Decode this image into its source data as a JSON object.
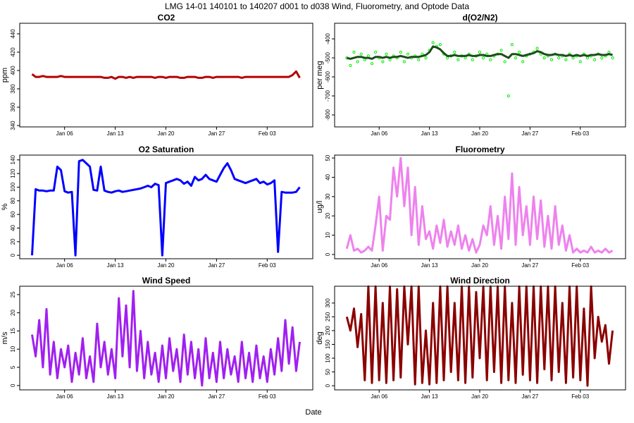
{
  "title": "LMG   14-01    140101 to 140207    d001 to d038   Wind, Fluorometry, and Optode Data",
  "xlabel": "Date",
  "chart_data": [
    {
      "type": "line",
      "title": "CO2",
      "ylabel": "ppm",
      "x": [
        1.5,
        2,
        2.5,
        3,
        3.5,
        4,
        4.5,
        5,
        5.5,
        6,
        6.5,
        7,
        7.5,
        8,
        8.5,
        9,
        9.5,
        10,
        10.5,
        11,
        11.5,
        12,
        12.5,
        13,
        13.5,
        14,
        14.5,
        15,
        15.5,
        16,
        16.5,
        17,
        17.5,
        18,
        18.5,
        19,
        19.5,
        20,
        20.5,
        21,
        21.5,
        22,
        22.5,
        23,
        23.5,
        24,
        24.5,
        25,
        25.5,
        26,
        26.5,
        27,
        27.5,
        28,
        28.5,
        29,
        29.5,
        30,
        30.5,
        31,
        31.5,
        32,
        32.5,
        33,
        33.5,
        34,
        34.5,
        35,
        35.5,
        36,
        36.5,
        37,
        37.5,
        38,
        38.5
      ],
      "series": [
        {
          "type": "line",
          "color": "#b30000",
          "values": [
            396,
            393,
            393,
            394,
            393,
            393,
            393,
            393,
            394,
            393,
            393,
            393,
            393,
            393,
            393,
            393,
            393,
            393,
            393,
            393,
            392,
            392,
            393,
            391,
            393,
            393,
            392,
            393,
            392,
            393,
            393,
            393,
            393,
            393,
            392,
            393,
            393,
            392,
            393,
            393,
            393,
            392,
            392,
            393,
            393,
            393,
            392,
            392,
            393,
            393,
            392,
            393,
            393,
            393,
            393,
            393,
            393,
            393,
            392,
            393,
            393,
            393,
            393,
            393,
            393,
            393,
            393,
            393,
            393,
            393,
            393,
            393,
            395,
            399,
            392
          ]
        }
      ],
      "xlim": [
        -0.2,
        40.3
      ],
      "xticks": [
        {
          "value": 6,
          "label": "Jan 06"
        },
        {
          "value": 13,
          "label": "Jan 13"
        },
        {
          "value": 20,
          "label": "Jan 20"
        },
        {
          "value": 27,
          "label": "Jan 27"
        },
        {
          "value": 34,
          "label": "Feb 03"
        }
      ],
      "ylim": [
        338.5,
        451.5
      ],
      "yticks": [
        340,
        360,
        380,
        400,
        420,
        440
      ]
    },
    {
      "type": "line",
      "title": "d(O2/N2)",
      "ylabel": "per meg",
      "x": [
        1.5,
        2,
        2.5,
        3,
        3.5,
        4,
        4.5,
        5,
        5.5,
        6,
        6.5,
        7,
        7.5,
        8,
        8.5,
        9,
        9.5,
        10,
        10.5,
        11,
        11.5,
        12,
        12.5,
        13,
        13.5,
        14,
        14.5,
        15,
        15.5,
        16,
        16.5,
        17,
        17.5,
        18,
        18.5,
        19,
        19.5,
        20,
        20.5,
        21,
        21.5,
        22,
        22.5,
        23,
        23.5,
        24,
        24.5,
        25,
        25.5,
        26,
        26.5,
        27,
        27.5,
        28,
        28.5,
        29,
        29.5,
        30,
        30.5,
        31,
        31.5,
        32,
        32.5,
        33,
        33.5,
        34,
        34.5,
        35,
        35.5,
        36,
        36.5,
        37,
        37.5,
        38,
        38.5
      ],
      "series": [
        {
          "type": "scatter",
          "color": "#00ee00",
          "values": [
            -500,
            -540,
            -470,
            -520,
            -480,
            -510,
            -490,
            -530,
            -470,
            -500,
            -520,
            -480,
            -510,
            -490,
            -500,
            -470,
            -520,
            -480,
            -500,
            -490,
            -510,
            -480,
            -500,
            -460,
            -420,
            -440,
            -430,
            -480,
            -500,
            -490,
            -470,
            -510,
            -490,
            -500,
            -480,
            -510,
            -490,
            -470,
            -500,
            -480,
            -510,
            -490,
            -480,
            -460,
            -520,
            -700,
            -430,
            -500,
            -470,
            -520,
            -490,
            -480,
            -470,
            -450,
            -480,
            -500,
            -490,
            -510,
            -480,
            -500,
            -490,
            -510,
            -480,
            -500,
            -490,
            -520,
            -480,
            -500,
            -490,
            -510,
            -480,
            -500,
            -490,
            -470,
            -500
          ]
        },
        {
          "type": "line",
          "color": "#1a4d1a",
          "values": [
            -500,
            -505,
            -500,
            -495,
            -495,
            -500,
            -500,
            -505,
            -495,
            -495,
            -500,
            -495,
            -500,
            -495,
            -495,
            -490,
            -495,
            -500,
            -495,
            -495,
            -495,
            -490,
            -485,
            -470,
            -440,
            -445,
            -455,
            -475,
            -490,
            -490,
            -485,
            -490,
            -490,
            -490,
            -485,
            -490,
            -490,
            -485,
            -485,
            -490,
            -490,
            -485,
            -480,
            -480,
            -490,
            -500,
            -480,
            -480,
            -485,
            -490,
            -485,
            -480,
            -475,
            -465,
            -470,
            -480,
            -485,
            -485,
            -480,
            -485,
            -485,
            -490,
            -485,
            -490,
            -485,
            -490,
            -485,
            -490,
            -485,
            -485,
            -480,
            -485,
            -485,
            -480,
            -485
          ]
        }
      ],
      "xlim": [
        -0.2,
        40.3
      ],
      "xticks": [
        {
          "value": 6,
          "label": "Jan 06"
        },
        {
          "value": 13,
          "label": "Jan 13"
        },
        {
          "value": 20,
          "label": "Jan 20"
        },
        {
          "value": 27,
          "label": "Jan 27"
        },
        {
          "value": 34,
          "label": "Feb 03"
        }
      ],
      "ylim": [
        -863,
        -318
      ],
      "yticks": [
        -400,
        -500,
        -600,
        -700,
        -800
      ]
    },
    {
      "type": "line",
      "title": "O2 Saturation",
      "ylabel": "%",
      "x": [
        1.5,
        2,
        2.5,
        3,
        3.5,
        4,
        4.5,
        5,
        5.5,
        6,
        6.5,
        7,
        7.5,
        8,
        8.5,
        9,
        9.5,
        10,
        10.5,
        11,
        11.5,
        12,
        12.5,
        13,
        13.5,
        14,
        14.5,
        15,
        15.5,
        16,
        16.5,
        17,
        17.5,
        18,
        18.5,
        19,
        19.5,
        20,
        20.5,
        21,
        21.5,
        22,
        22.5,
        23,
        23.5,
        24,
        24.5,
        25,
        25.5,
        26,
        26.5,
        27,
        27.5,
        28,
        28.5,
        29,
        29.5,
        30,
        30.5,
        31,
        31.5,
        32,
        32.5,
        33,
        33.5,
        34,
        34.5,
        35,
        35.5,
        36,
        36.5,
        37,
        37.5,
        38,
        38.5
      ],
      "series": [
        {
          "type": "line",
          "color": "#0000ff",
          "values": [
            0,
            97,
            95,
            95,
            94,
            95,
            95,
            130,
            125,
            94,
            92,
            93,
            0,
            138,
            140,
            135,
            130,
            96,
            95,
            130,
            95,
            93,
            92,
            94,
            95,
            93,
            94,
            95,
            96,
            97,
            98,
            100,
            102,
            100,
            105,
            103,
            0,
            106,
            108,
            110,
            112,
            110,
            105,
            108,
            102,
            115,
            110,
            112,
            118,
            112,
            110,
            108,
            118,
            128,
            135,
            125,
            112,
            110,
            108,
            106,
            108,
            110,
            112,
            106,
            108,
            104,
            106,
            110,
            5,
            93,
            92,
            92,
            92,
            93,
            100
          ]
        }
      ],
      "xlim": [
        -0.2,
        40.3
      ],
      "xticks": [
        {
          "value": 6,
          "label": "Jan 06"
        },
        {
          "value": 13,
          "label": "Jan 13"
        },
        {
          "value": 20,
          "label": "Jan 20"
        },
        {
          "value": 27,
          "label": "Jan 27"
        },
        {
          "value": 34,
          "label": "Feb 03"
        }
      ],
      "ylim": [
        -5,
        147
      ],
      "yticks": [
        0,
        20,
        40,
        60,
        80,
        100,
        120,
        140
      ]
    },
    {
      "type": "line",
      "title": "Fluorometry",
      "ylabel": "ug/l",
      "x": [
        1.5,
        2,
        2.5,
        3,
        3.5,
        4,
        4.5,
        5,
        5.5,
        6,
        6.5,
        7,
        7.5,
        8,
        8.5,
        9,
        9.5,
        10,
        10.5,
        11,
        11.5,
        12,
        12.5,
        13,
        13.5,
        14,
        14.5,
        15,
        15.5,
        16,
        16.5,
        17,
        17.5,
        18,
        18.5,
        19,
        19.5,
        20,
        20.5,
        21,
        21.5,
        22,
        22.5,
        23,
        23.5,
        24,
        24.5,
        25,
        25.5,
        26,
        26.5,
        27,
        27.5,
        28,
        28.5,
        29,
        29.5,
        30,
        30.5,
        31,
        31.5,
        32,
        32.5,
        33,
        33.5,
        34,
        34.5,
        35,
        35.5,
        36,
        36.5,
        37,
        37.5,
        38,
        38.5
      ],
      "series": [
        {
          "type": "line",
          "color": "#ee82ee",
          "values": [
            3,
            10,
            2,
            3,
            1,
            2,
            4,
            2,
            15,
            30,
            2,
            20,
            18,
            45,
            30,
            50,
            25,
            45,
            10,
            35,
            5,
            25,
            8,
            12,
            3,
            15,
            6,
            18,
            4,
            12,
            5,
            15,
            3,
            10,
            2,
            8,
            1,
            5,
            15,
            10,
            25,
            5,
            20,
            3,
            30,
            8,
            42,
            5,
            35,
            10,
            25,
            5,
            30,
            8,
            28,
            4,
            20,
            3,
            25,
            5,
            15,
            2,
            10,
            1,
            3,
            1,
            2,
            1,
            4,
            1,
            2,
            1,
            3,
            1,
            2
          ]
        }
      ],
      "xlim": [
        -0.2,
        40.3
      ],
      "xticks": [
        {
          "value": 6,
          "label": "Jan 06"
        },
        {
          "value": 13,
          "label": "Jan 13"
        },
        {
          "value": 20,
          "label": "Jan 20"
        },
        {
          "value": 27,
          "label": "Jan 27"
        },
        {
          "value": 34,
          "label": "Feb 03"
        }
      ],
      "ylim": [
        -2.2,
        51.5
      ],
      "yticks": [
        0,
        10,
        20,
        30,
        40,
        50
      ]
    },
    {
      "type": "line",
      "title": "Wind Speed",
      "ylabel": "m/s",
      "x": [
        1.5,
        2,
        2.5,
        3,
        3.5,
        4,
        4.5,
        5,
        5.5,
        6,
        6.5,
        7,
        7.5,
        8,
        8.5,
        9,
        9.5,
        10,
        10.5,
        11,
        11.5,
        12,
        12.5,
        13,
        13.5,
        14,
        14.5,
        15,
        15.5,
        16,
        16.5,
        17,
        17.5,
        18,
        18.5,
        19,
        19.5,
        20,
        20.5,
        21,
        21.5,
        22,
        22.5,
        23,
        23.5,
        24,
        24.5,
        25,
        25.5,
        26,
        26.5,
        27,
        27.5,
        28,
        28.5,
        29,
        29.5,
        30,
        30.5,
        31,
        31.5,
        32,
        32.5,
        33,
        33.5,
        34,
        34.5,
        35,
        35.5,
        36,
        36.5,
        37,
        37.5,
        38,
        38.5
      ],
      "series": [
        {
          "type": "line",
          "color": "#a020f0",
          "values": [
            14,
            8,
            18,
            5,
            21,
            3,
            12,
            2,
            10,
            5,
            11,
            1,
            9,
            3,
            13,
            2,
            8,
            1,
            17,
            5,
            12,
            3,
            10,
            2,
            24,
            8,
            22,
            5,
            26,
            4,
            15,
            2,
            12,
            3,
            9,
            1,
            11,
            2,
            13,
            4,
            10,
            1,
            14,
            3,
            12,
            2,
            10,
            0,
            13,
            2,
            9,
            1,
            12,
            2,
            10,
            3,
            8,
            1,
            12,
            2,
            9,
            1,
            11,
            2,
            8,
            1,
            10,
            3,
            13,
            4,
            18,
            6,
            16,
            4,
            12
          ]
        }
      ],
      "xlim": [
        -0.2,
        40.3
      ],
      "xticks": [
        {
          "value": 6,
          "label": "Jan 06"
        },
        {
          "value": 13,
          "label": "Jan 13"
        },
        {
          "value": 20,
          "label": "Jan 20"
        },
        {
          "value": 27,
          "label": "Jan 27"
        },
        {
          "value": 34,
          "label": "Feb 03"
        }
      ],
      "ylim": [
        -1.2,
        27.3
      ],
      "yticks": [
        0,
        5,
        10,
        15,
        20,
        25
      ]
    },
    {
      "type": "line",
      "title": "Wind Direction",
      "ylabel": "deg",
      "x": [
        1.5,
        2,
        2.5,
        3,
        3.5,
        4,
        4.5,
        5,
        5.5,
        6,
        6.5,
        7,
        7.5,
        8,
        8.5,
        9,
        9.5,
        10,
        10.5,
        11,
        11.5,
        12,
        12.5,
        13,
        13.5,
        14,
        14.5,
        15,
        15.5,
        16,
        16.5,
        17,
        17.5,
        18,
        18.5,
        19,
        19.5,
        20,
        20.5,
        21,
        21.5,
        22,
        22.5,
        23,
        23.5,
        24,
        24.5,
        25,
        25.5,
        26,
        26.5,
        27,
        27.5,
        28,
        28.5,
        29,
        29.5,
        30,
        30.5,
        31,
        31.5,
        32,
        32.5,
        33,
        33.5,
        34,
        34.5,
        35,
        35.5,
        36,
        36.5,
        37,
        37.5,
        38,
        38.5
      ],
      "series": [
        {
          "type": "line",
          "color": "#8b0000",
          "values": [
            250,
            200,
            280,
            140,
            260,
            20,
            360,
            10,
            360,
            20,
            300,
            10,
            360,
            20,
            350,
            30,
            360,
            150,
            360,
            5,
            360,
            10,
            200,
            5,
            300,
            10,
            360,
            20,
            360,
            50,
            300,
            20,
            360,
            10,
            360,
            30,
            340,
            100,
            360,
            20,
            360,
            50,
            360,
            10,
            360,
            20,
            300,
            10,
            360,
            40,
            360,
            20,
            360,
            10,
            360,
            60,
            360,
            20,
            360,
            50,
            300,
            10,
            360,
            30,
            360,
            20,
            280,
            0,
            360,
            100,
            250,
            160,
            220,
            80,
            200
          ]
        }
      ],
      "xlim": [
        -0.2,
        40.3
      ],
      "xticks": [
        {
          "value": 6,
          "label": "Jan 06"
        },
        {
          "value": 13,
          "label": "Jan 13"
        },
        {
          "value": 20,
          "label": "Jan 20"
        },
        {
          "value": 27,
          "label": "Jan 27"
        },
        {
          "value": 34,
          "label": "Feb 03"
        }
      ],
      "ylim": [
        -15,
        361
      ],
      "yticks": [
        0,
        50,
        100,
        150,
        200,
        250,
        300
      ]
    }
  ]
}
